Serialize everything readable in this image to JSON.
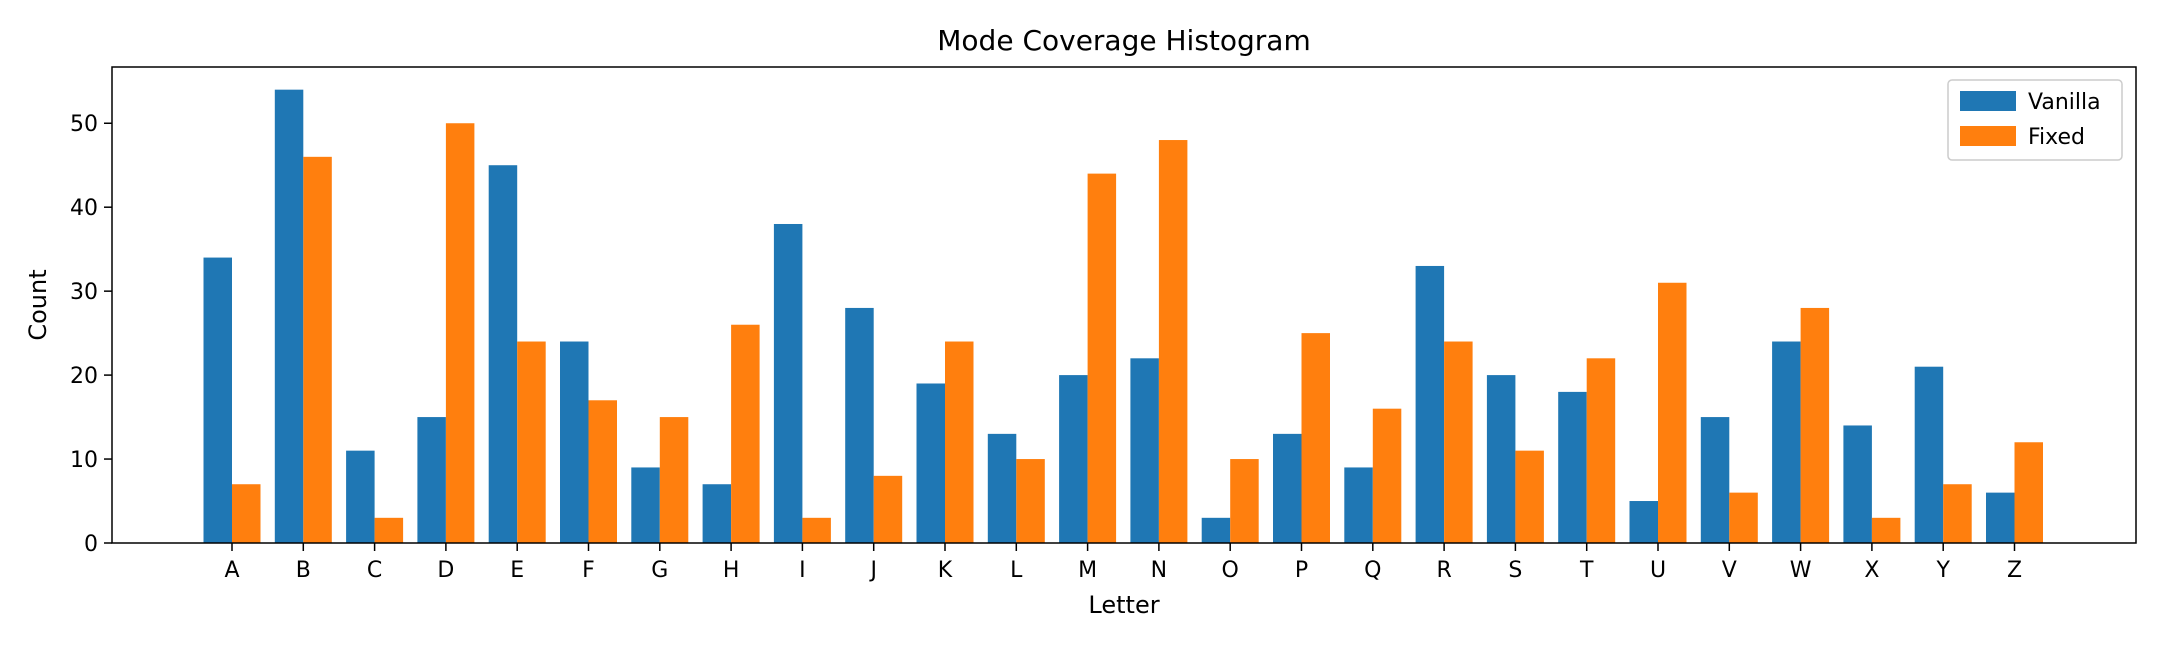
{
  "chart_data": {
    "type": "bar",
    "title": "Mode Coverage Histogram",
    "xlabel": "Letter",
    "ylabel": "Count",
    "categories": [
      "A",
      "B",
      "C",
      "D",
      "E",
      "F",
      "G",
      "H",
      "I",
      "J",
      "K",
      "L",
      "M",
      "N",
      "O",
      "P",
      "Q",
      "R",
      "S",
      "T",
      "U",
      "V",
      "W",
      "X",
      "Y",
      "Z"
    ],
    "series": [
      {
        "name": "Vanilla",
        "color": "#1f77b4",
        "values": [
          34,
          54,
          11,
          15,
          45,
          24,
          9,
          7,
          38,
          28,
          19,
          13,
          20,
          22,
          3,
          13,
          9,
          33,
          20,
          18,
          5,
          15,
          24,
          14,
          21,
          6
        ]
      },
      {
        "name": "Fixed",
        "color": "#ff7f0e",
        "values": [
          7,
          46,
          3,
          50,
          24,
          17,
          15,
          26,
          3,
          8,
          24,
          10,
          44,
          48,
          10,
          25,
          16,
          24,
          11,
          22,
          31,
          6,
          28,
          3,
          7,
          12
        ]
      }
    ],
    "ylim": [
      0,
      56.7
    ],
    "yticks": [
      0,
      10,
      20,
      30,
      40,
      50
    ],
    "grid": false,
    "legend": "top-right"
  }
}
